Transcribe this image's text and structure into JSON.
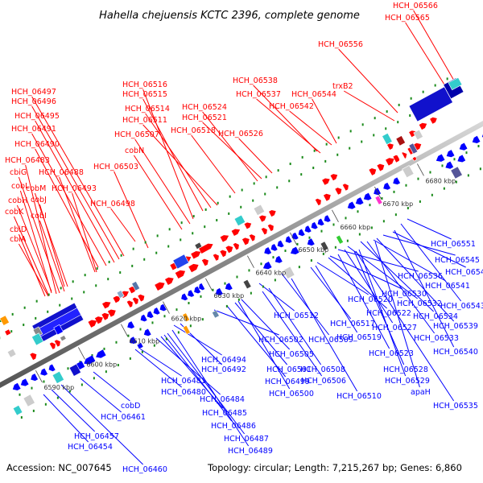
{
  "title": "Hahella chejuensis KCTC 2396, complete genome",
  "accession": "Accession: NC_007645",
  "topology": "Topology: circular; Length: 7,215,267 bp; Genes: 6,860",
  "colors": {
    "forward": "#ff0000",
    "reverse": "#0000ff",
    "backbone": "#9a9a9a",
    "dots": "#1a8a1a",
    "rna_orange": "#ff9900",
    "rna_cyan": "#33cccc",
    "green": "#33cc33",
    "magenta": "#ff33cc",
    "purple": "#555599"
  },
  "ticks": [
    "6590 kbp",
    "6600 kbp",
    "6610 kbp",
    "6620 kbp",
    "6630 kbp",
    "6640 kbp",
    "6650 kbp",
    "6660 kbp",
    "6670 kbp",
    "6680 kbp"
  ],
  "top_labels": [
    "HCH_06566",
    "HCH_06565",
    "HCH_06556",
    "trxB2",
    "HCH_06538",
    "HCH_06537",
    "HCH_06544",
    "HCH_06542",
    "HCH_06516",
    "HCH_06515",
    "HCH_06514",
    "HCH_06511",
    "HCH_06524",
    "HCH_06521",
    "HCH_06518",
    "HCH_06526",
    "HCH_06507",
    "cobN",
    "HCH_06503",
    "HCH_06497",
    "HCH_06496",
    "HCH_06495",
    "HCH_06491",
    "HCH_06490",
    "HCH_06483",
    "cbiG",
    "HCH_06488",
    "cobL",
    "cobM",
    "HCH_06493",
    "cobH",
    "cobJ",
    "HCH_06498",
    "cobK",
    "cobI",
    "cbiD",
    "cbiA"
  ],
  "bottom_labels": [
    "HCH_06551",
    "HCH_06545",
    "HCH_06547",
    "HCH_06541",
    "HCH_06543",
    "HCH_06539",
    "HCH_06540",
    "HCH_06534",
    "HCH_06533",
    "HCH_06536",
    "HCH_06530",
    "HCH_06532",
    "HCH_06520",
    "HCH_06522",
    "HCH_06517",
    "HCH_06527",
    "HCH_06519",
    "HCH_06523",
    "HCH_06528",
    "HCH_06529",
    "apaH",
    "HCH_06535",
    "HCH_06512",
    "HCH_06509",
    "HCH_06502",
    "HCH_06505",
    "HCH_06508",
    "HCH_06506",
    "HCH_06510",
    "HCH_06501",
    "HCH_06499",
    "HCH_06500",
    "HCH_06494",
    "HCH_06492",
    "HCH_06481",
    "HCH_06480",
    "HCH_06484",
    "HCH_06485",
    "HCH_06486",
    "HCH_06487",
    "HCH_06489",
    "cobD",
    "HCH_06461",
    "HCH_06457",
    "HCH_06454",
    "HCH_06460"
  ]
}
